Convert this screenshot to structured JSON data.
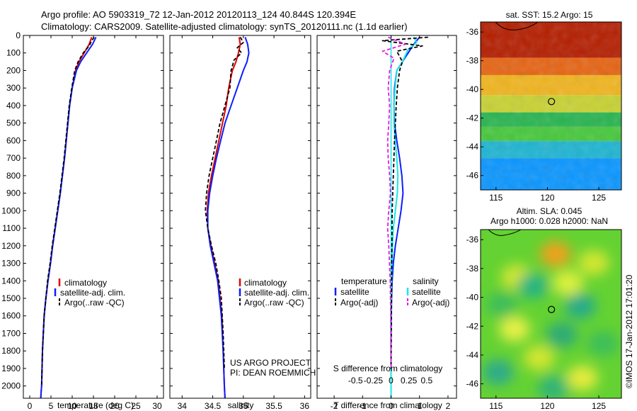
{
  "header": {
    "line1": "Argo profile: AO 5903319_72 12-Jan-2012 20120113_124 40.844S 120.394E",
    "line2": "Climatology: CARS2009. Satellite-adjusted climatology: synTS_20120111.nc (1.1d earlier)"
  },
  "colors": {
    "climatology": "#e00000",
    "satellite": "#0a1eff",
    "argo": "#000000",
    "satellite_salinity": "#19e6e6",
    "argo_salinity_adj": "#e619e6"
  },
  "footer": {
    "project": "US ARGO PROJECT",
    "pi": "PI: DEAN ROEMMICH",
    "stamp": "©IMOS 17-Jan-2012 17:01:20"
  },
  "chart_data": [
    {
      "id": "temperature-profile",
      "type": "line",
      "xlabel": "temperature (deg C)",
      "ylabel": "",
      "xlim": [
        -1.5,
        31.5
      ],
      "ylim": [
        0,
        2070
      ],
      "y_inverted": true,
      "xticks": [
        0,
        5,
        10,
        15,
        20,
        25,
        30
      ],
      "yticks": [
        0,
        100,
        200,
        300,
        400,
        500,
        600,
        700,
        800,
        900,
        1000,
        1100,
        1200,
        1300,
        1400,
        1500,
        1600,
        1700,
        1800,
        1900,
        2000
      ],
      "legend": [
        "climatology",
        "satellite-adj. clim.",
        "Argo(..raw -QC)"
      ],
      "series": [
        {
          "name": "climatology",
          "color": "#e00000",
          "dash": false,
          "x": [
            14.6,
            14.0,
            12.8,
            11.6,
            10.8,
            10.0,
            9.4,
            9.0,
            8.6,
            8.2,
            7.7,
            7.2,
            6.6,
            6.0,
            5.4,
            4.9,
            4.3,
            3.8,
            3.4,
            3.2,
            3.0,
            2.9,
            2.8,
            2.7,
            2.65,
            2.6
          ],
          "y": [
            10,
            50,
            100,
            150,
            200,
            300,
            400,
            500,
            600,
            700,
            800,
            900,
            1000,
            1100,
            1200,
            1300,
            1400,
            1500,
            1600,
            1700,
            1800,
            1900,
            2000,
            2030,
            2050,
            2070
          ]
        },
        {
          "name": "satellite-adj. clim.",
          "color": "#0a1eff",
          "dash": false,
          "x": [
            15.6,
            14.8,
            13.4,
            12.0,
            11.0,
            10.0,
            9.4,
            9.0,
            8.6,
            8.2,
            7.7,
            7.2,
            6.6,
            6.0,
            5.4,
            4.9,
            4.3,
            3.8,
            3.4,
            3.2,
            3.0,
            2.9,
            2.8,
            2.7,
            2.65,
            2.6
          ],
          "y": [
            10,
            50,
            100,
            150,
            200,
            300,
            400,
            500,
            600,
            700,
            800,
            900,
            1000,
            1100,
            1200,
            1300,
            1400,
            1500,
            1600,
            1700,
            1800,
            1900,
            2000,
            2030,
            2050,
            2070
          ]
        },
        {
          "name": "Argo(..raw -QC)",
          "color": "#000000",
          "dash": true,
          "x": [
            15.2,
            14.6,
            14.0,
            12.6,
            11.4,
            10.6,
            9.9,
            9.3,
            8.9,
            8.5,
            8.1,
            7.6,
            7.1,
            6.5,
            5.9,
            5.3,
            4.8,
            4.2,
            3.8,
            3.4,
            3.2,
            3.0,
            2.9,
            2.8
          ],
          "y": [
            10,
            30,
            60,
            100,
            150,
            200,
            300,
            400,
            500,
            600,
            700,
            800,
            900,
            1000,
            1100,
            1200,
            1300,
            1400,
            1500,
            1600,
            1700,
            1800,
            1900,
            2000
          ]
        }
      ]
    },
    {
      "id": "salinity-profile",
      "type": "line",
      "xlabel": "salinity",
      "ylabel": "",
      "xlim": [
        33.8,
        36.1
      ],
      "ylim": [
        0,
        2070
      ],
      "y_inverted": true,
      "xticks": [
        34,
        34.5,
        35,
        35.5,
        36
      ],
      "yticks": [],
      "legend": [
        "climatology",
        "satellite-adj. clim.",
        "Argo(..raw -QC)"
      ],
      "series": [
        {
          "name": "climatology",
          "color": "#e00000",
          "dash": false,
          "x": [
            34.93,
            34.95,
            34.92,
            34.88,
            34.82,
            34.76,
            34.72,
            34.66,
            34.6,
            34.54,
            34.48,
            34.43,
            34.41,
            34.42,
            34.47,
            34.53,
            34.59,
            34.62,
            34.65,
            34.67,
            34.69,
            34.7
          ],
          "y": [
            10,
            50,
            100,
            150,
            200,
            300,
            400,
            500,
            600,
            700,
            800,
            900,
            1000,
            1100,
            1200,
            1300,
            1400,
            1500,
            1600,
            1800,
            2000,
            2070
          ]
        },
        {
          "name": "satellite-adj. clim.",
          "color": "#0a1eff",
          "dash": false,
          "x": [
            35.03,
            35.07,
            35.09,
            35.06,
            35.0,
            34.9,
            34.8,
            34.7,
            34.63,
            34.56,
            34.5,
            34.45,
            34.42,
            34.42,
            34.46,
            34.52,
            34.58,
            34.61,
            34.64,
            34.67,
            34.69,
            34.7
          ],
          "y": [
            10,
            50,
            100,
            150,
            200,
            300,
            400,
            500,
            600,
            700,
            800,
            900,
            1000,
            1100,
            1200,
            1300,
            1400,
            1500,
            1600,
            1800,
            2000,
            2070
          ]
        },
        {
          "name": "Argo(..raw -QC)",
          "color": "#000000",
          "dash": true,
          "x": [
            34.95,
            35.0,
            34.9,
            34.97,
            34.85,
            34.8,
            34.78,
            34.7,
            34.62,
            34.56,
            34.5,
            34.44,
            34.4,
            34.38,
            34.42,
            34.48,
            34.55,
            34.6,
            34.64,
            34.67,
            34.69
          ],
          "y": [
            10,
            40,
            70,
            100,
            140,
            200,
            300,
            400,
            500,
            600,
            700,
            800,
            900,
            1000,
            1100,
            1200,
            1300,
            1400,
            1500,
            1700,
            1900
          ]
        }
      ]
    },
    {
      "id": "difference-profile",
      "type": "line",
      "xlabel": "T difference from climatology",
      "top_xlabel": "S difference from climatology",
      "ylabel": "",
      "xlim": [
        -2.6,
        2.3
      ],
      "ylim": [
        0,
        2070
      ],
      "y_inverted": true,
      "xticks": [
        -2,
        -1,
        0,
        1,
        2
      ],
      "top_ticks": [
        {
          "value": -1.25,
          "label": "-0.5"
        },
        {
          "value": -0.625,
          "label": "-0.25"
        },
        {
          "value": 0,
          "label": "0"
        },
        {
          "value": 0.625,
          "label": "0.25"
        },
        {
          "value": 1.25,
          "label": "0.5"
        }
      ],
      "yticks": [],
      "legend_headers": [
        "temperature",
        "salinity"
      ],
      "legend": [
        "satellite",
        "Argo(-adj)",
        "satellite",
        "Argo(-adj)"
      ],
      "series": [
        {
          "name": "satellite",
          "color": "#0a1eff",
          "dash": false,
          "x": [
            1.0,
            0.8,
            0.6,
            0.4,
            0.2,
            0.12,
            0.1,
            0.12,
            0.2,
            0.3,
            0.38,
            0.42,
            0.35,
            0.25,
            0.15,
            0.08,
            0.04,
            0.02,
            0.01,
            0.0,
            0.0,
            0.0
          ],
          "y": [
            10,
            50,
            100,
            150,
            200,
            300,
            400,
            500,
            600,
            700,
            800,
            900,
            1000,
            1100,
            1200,
            1300,
            1400,
            1500,
            1600,
            1800,
            2000,
            2070
          ]
        },
        {
          "name": "satellite",
          "color": "#19e6e6",
          "dash": false,
          "x": [
            0.8,
            0.9,
            0.6,
            0.4,
            0.2,
            0.14,
            0.1,
            0.1,
            0.14,
            0.2,
            0.24,
            0.22,
            0.15,
            0.08,
            0.05,
            0.03,
            0.02,
            0.01,
            0.0,
            0.0,
            0.0
          ],
          "y": [
            10,
            40,
            80,
            150,
            200,
            300,
            400,
            500,
            600,
            700,
            800,
            900,
            1000,
            1100,
            1200,
            1300,
            1400,
            1500,
            1700,
            1900,
            2070
          ]
        },
        {
          "name": "Argo(-adj)",
          "color": "#000000",
          "dash": true,
          "x": [
            1.3,
            -0.3,
            1.1,
            0.2,
            0.4,
            0.3,
            0.22,
            0.18,
            0.15,
            0.12,
            0.1,
            0.08,
            0.06,
            0.04,
            0.03,
            0.02,
            0.01,
            0.0
          ],
          "y": [
            10,
            30,
            60,
            90,
            150,
            200,
            300,
            400,
            500,
            600,
            700,
            800,
            900,
            1000,
            1200,
            1400,
            1600,
            1900
          ]
        },
        {
          "name": "Argo(-adj)",
          "color": "#e619e6",
          "dash": true,
          "x": [
            -0.1,
            0.5,
            -0.3,
            0.1,
            -0.05,
            -0.1,
            -0.05,
            -0.08,
            -0.12,
            -0.1,
            -0.05,
            -0.02,
            -0.08,
            -0.12,
            -0.08,
            -0.03,
            -0.01,
            0.0
          ],
          "y": [
            10,
            50,
            90,
            130,
            200,
            300,
            400,
            500,
            600,
            700,
            800,
            900,
            1000,
            1100,
            1200,
            1400,
            1600,
            1900
          ]
        }
      ]
    },
    {
      "id": "sst-map",
      "type": "heatmap",
      "title": "sat. SST: 15.2 Argo: 15",
      "xlim": [
        113.5,
        127.2
      ],
      "ylim": [
        -47,
        -35.3
      ],
      "xticks": [
        115,
        120,
        125
      ],
      "yticks": [
        -36,
        -38,
        -40,
        -42,
        -44,
        -46
      ],
      "marker": {
        "lon": 120.394,
        "lat": -40.844
      },
      "bands": [
        {
          "lat_top": -35.3,
          "lat_bottom": -37.8,
          "color": "#b41e00"
        },
        {
          "lat_top": -37.8,
          "lat_bottom": -39.0,
          "color": "#e66414"
        },
        {
          "lat_top": -39.0,
          "lat_bottom": -40.4,
          "color": "#f0b41e"
        },
        {
          "lat_top": -40.4,
          "lat_bottom": -41.6,
          "color": "#c8d232"
        },
        {
          "lat_top": -41.6,
          "lat_bottom": -42.6,
          "color": "#28b450"
        },
        {
          "lat_top": -42.6,
          "lat_bottom": -43.6,
          "color": "#46c83c"
        },
        {
          "lat_top": -43.6,
          "lat_bottom": -44.8,
          "color": "#1eb4d2"
        },
        {
          "lat_top": -44.8,
          "lat_bottom": -47.0,
          "color": "#0a96ff"
        }
      ]
    },
    {
      "id": "sla-map",
      "type": "heatmap",
      "title": "Altim. SLA: 0.045",
      "subtitle": "Argo h1000: 0.028 h2000: NaN",
      "xlim": [
        113.5,
        127.2
      ],
      "ylim": [
        -47,
        -35.3
      ],
      "xticks": [
        115,
        120,
        125
      ],
      "yticks": [
        -36,
        -38,
        -40,
        -42,
        -44,
        -46
      ],
      "marker": {
        "lon": 120.394,
        "lat": -40.844
      },
      "background": "#64d232",
      "blobs": [
        {
          "lon": 120.8,
          "lat": -37.0,
          "color": "#f0a01e"
        },
        {
          "lon": 117.0,
          "lat": -38.6,
          "color": "#d2e632"
        },
        {
          "lon": 124.5,
          "lat": -37.6,
          "color": "#d2e632"
        },
        {
          "lon": 122.0,
          "lat": -39.0,
          "color": "#dcf03c"
        },
        {
          "lon": 118.6,
          "lat": -39.2,
          "color": "#28b482"
        },
        {
          "lon": 115.6,
          "lat": -40.5,
          "color": "#3cbe5a"
        },
        {
          "lon": 123.2,
          "lat": -40.6,
          "color": "#28aa8c"
        },
        {
          "lon": 116.8,
          "lat": -42.2,
          "color": "#e6f046"
        },
        {
          "lon": 121.4,
          "lat": -42.6,
          "color": "#2daa78"
        },
        {
          "lon": 125.4,
          "lat": -43.2,
          "color": "#3cbe5a"
        },
        {
          "lon": 119.2,
          "lat": -44.2,
          "color": "#d2e632"
        },
        {
          "lon": 115.2,
          "lat": -45.2,
          "color": "#2daa8c"
        },
        {
          "lon": 123.4,
          "lat": -45.6,
          "color": "#e6eb3c"
        },
        {
          "lon": 120.6,
          "lat": -46.3,
          "color": "#32b478"
        }
      ]
    }
  ]
}
